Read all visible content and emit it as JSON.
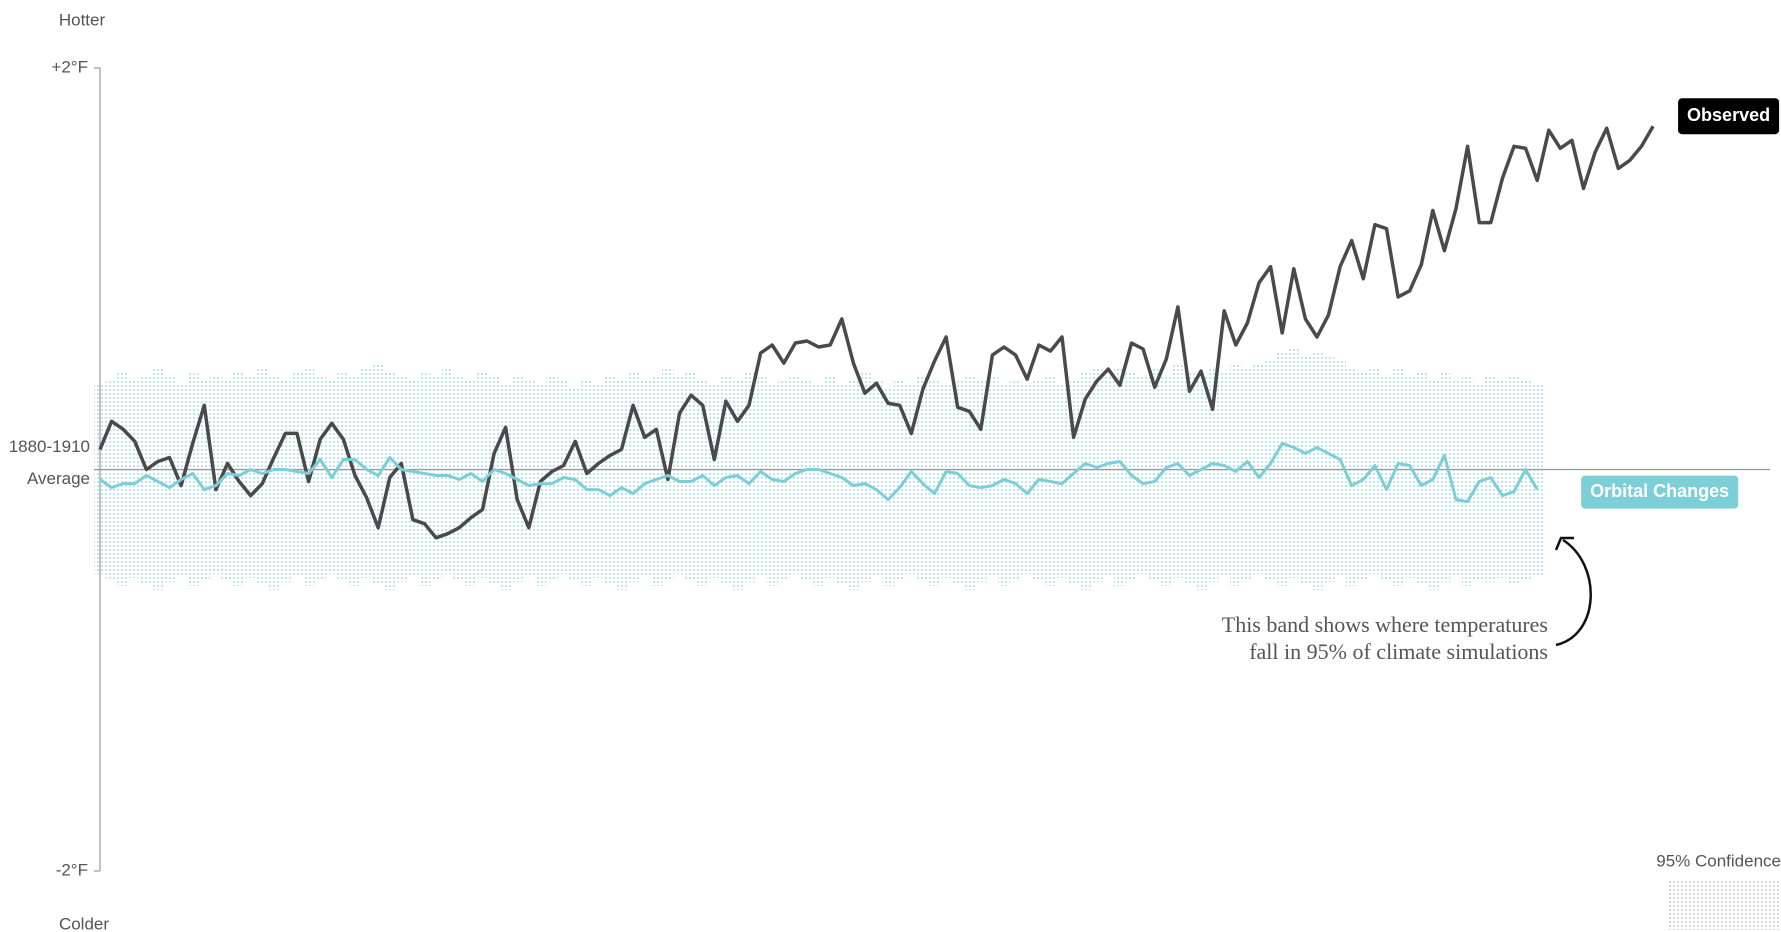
{
  "chart_data": {
    "type": "line",
    "axis_top_label": "Hotter",
    "axis_bottom_label": "Colder",
    "categories": [
      null,
      null,
      null,
      null,
      null,
      null,
      null,
      null,
      null,
      null,
      null,
      null,
      null,
      null,
      null,
      null,
      null,
      null,
      null,
      null,
      null,
      null,
      null,
      null,
      null,
      null,
      null,
      null,
      null,
      null,
      null,
      null,
      null,
      null,
      null,
      null,
      null,
      null,
      null,
      null,
      null,
      null,
      null,
      null,
      null,
      null,
      null,
      null,
      null,
      null,
      null,
      null,
      null,
      null,
      null,
      null,
      null,
      null,
      null,
      null,
      null,
      null,
      null,
      null,
      null,
      null,
      null,
      null,
      null,
      null,
      null,
      null,
      null,
      null,
      null,
      null,
      null,
      null,
      null,
      null,
      null,
      null,
      null,
      null,
      null,
      null,
      null,
      null,
      null,
      null,
      null,
      null,
      null,
      null,
      null,
      null,
      null,
      null,
      null,
      null,
      null,
      null,
      null,
      null,
      null,
      null,
      null,
      null,
      null,
      null,
      null,
      null,
      null,
      null,
      null,
      null,
      null,
      null,
      null,
      null,
      null,
      null,
      null,
      null,
      null,
      null,
      null,
      null,
      null,
      null,
      null,
      null,
      null,
      null,
      null
    ],
    "ylim": [
      -2,
      2
    ],
    "yticks": [
      {
        "value": 2,
        "label": "+2°F"
      },
      {
        "value": 0,
        "label": [
          "1880-1910",
          "Average"
        ]
      },
      {
        "value": -2,
        "label": "-2°F"
      }
    ],
    "series": [
      {
        "name": "Observed",
        "color": "#4a4a4a",
        "values": [
          0.1,
          0.24,
          0.2,
          0.14,
          0,
          0.04,
          0.06,
          -0.08,
          0.13,
          0.32,
          -0.1,
          0.03,
          -0.06,
          -0.13,
          -0.07,
          0.06,
          0.18,
          0.18,
          -0.06,
          0.15,
          0.23,
          0.15,
          -0.03,
          -0.14,
          -0.29,
          -0.04,
          0.03,
          -0.25,
          -0.27,
          -0.34,
          -0.32,
          -0.29,
          -0.24,
          -0.2,
          0.08,
          0.21,
          -0.15,
          -0.29,
          -0.06,
          -0.01,
          0.02,
          0.14,
          -0.02,
          0.03,
          0.07,
          0.1,
          0.32,
          0.16,
          0.2,
          -0.05,
          0.28,
          0.37,
          0.32,
          0.05,
          0.34,
          0.24,
          0.32,
          0.58,
          0.62,
          0.53,
          0.63,
          0.64,
          0.61,
          0.62,
          0.75,
          0.53,
          0.38,
          0.43,
          0.33,
          0.32,
          0.18,
          0.4,
          0.54,
          0.66,
          0.31,
          0.29,
          0.2,
          0.57,
          0.61,
          0.57,
          0.45,
          0.62,
          0.59,
          0.66,
          0.16,
          0.35,
          0.44,
          0.5,
          0.42,
          0.63,
          0.6,
          0.41,
          0.55,
          0.81,
          0.39,
          0.49,
          0.3,
          0.79,
          0.62,
          0.73,
          0.93,
          1.01,
          0.68,
          1,
          0.75,
          0.66,
          0.77,
          1.01,
          1.14,
          0.95,
          1.22,
          1.2,
          0.86,
          0.89,
          1.02,
          1.29,
          1.09,
          1.3,
          1.61,
          1.23,
          1.23,
          1.45,
          1.61,
          1.6,
          1.44,
          1.69,
          1.6,
          1.64,
          1.4,
          1.58,
          1.7,
          1.5,
          1.54,
          1.61,
          1.71
        ]
      },
      {
        "name": "Orbital Changes",
        "color": "#7ccfd6",
        "values": [
          -0.05,
          -0.09,
          -0.07,
          -0.07,
          -0.03,
          -0.06,
          -0.09,
          -0.05,
          -0.02,
          -0.1,
          -0.08,
          -0.02,
          -0.03,
          0,
          -0.02,
          0,
          0,
          -0.01,
          -0.02,
          0.05,
          -0.04,
          0.05,
          0.05,
          0,
          -0.03,
          0.06,
          0,
          -0.01,
          -0.02,
          -0.03,
          -0.03,
          -0.05,
          -0.02,
          -0.06,
          0,
          -0.02,
          -0.05,
          -0.08,
          -0.07,
          -0.07,
          -0.04,
          -0.05,
          -0.1,
          -0.1,
          -0.13,
          -0.09,
          -0.12,
          -0.07,
          -0.05,
          -0.03,
          -0.06,
          -0.06,
          -0.03,
          -0.08,
          -0.04,
          -0.03,
          -0.07,
          -0.01,
          -0.05,
          -0.06,
          -0.02,
          0,
          0,
          -0.02,
          -0.04,
          -0.08,
          -0.07,
          -0.1,
          -0.15,
          -0.09,
          -0.01,
          -0.07,
          -0.12,
          -0.01,
          -0.02,
          -0.08,
          -0.09,
          -0.08,
          -0.05,
          -0.07,
          -0.12,
          -0.05,
          -0.06,
          -0.07,
          -0.02,
          0.03,
          0.01,
          0.03,
          0.04,
          -0.03,
          -0.07,
          -0.06,
          0.01,
          0.03,
          -0.03,
          0,
          0.03,
          0.02,
          -0.01,
          0.04,
          -0.04,
          0.03,
          0.13,
          0.11,
          0.08,
          0.11,
          0.08,
          0.05,
          -0.08,
          -0.05,
          0.02,
          -0.1,
          0.03,
          0.02,
          -0.08,
          -0.05,
          0.07,
          -0.15,
          -0.16,
          -0.06,
          -0.04,
          -0.13,
          -0.11,
          0,
          -0.1,
          null,
          null,
          null,
          null,
          null,
          null,
          null,
          null,
          null,
          null
        ]
      }
    ],
    "band": {
      "name": "95% Confidence",
      "color": "#a8dde3",
      "upper": [
        0.42,
        0.45,
        0.48,
        0.44,
        0.47,
        0.5,
        0.46,
        0.43,
        0.48,
        0.45,
        0.47,
        0.44,
        0.49,
        0.46,
        0.5,
        0.47,
        0.44,
        0.48,
        0.51,
        0.47,
        0.45,
        0.49,
        0.46,
        0.5,
        0.53,
        0.49,
        0.47,
        0.44,
        0.48,
        0.46,
        0.5,
        0.47,
        0.45,
        0.49,
        0.46,
        0.43,
        0.47,
        0.45,
        0.42,
        0.46,
        0.44,
        0.41,
        0.45,
        0.43,
        0.46,
        0.44,
        0.48,
        0.45,
        0.47,
        0.5,
        0.46,
        0.49,
        0.45,
        0.43,
        0.47,
        0.44,
        0.48,
        0.46,
        0.43,
        0.45,
        0.47,
        0.44,
        0.42,
        0.46,
        0.43,
        0.45,
        0.48,
        0.44,
        0.41,
        0.45,
        0.43,
        0.46,
        0.44,
        0.42,
        0.45,
        0.47,
        0.44,
        0.46,
        0.43,
        0.45,
        0.42,
        0.44,
        0.46,
        0.43,
        0.45,
        0.48,
        0.5,
        0.47,
        0.51,
        0.49,
        0.46,
        0.5,
        0.47,
        0.52,
        0.49,
        0.46,
        0.5,
        0.48,
        0.53,
        0.5,
        0.52,
        0.55,
        0.58,
        0.6,
        0.57,
        0.59,
        0.56,
        0.54,
        0.5,
        0.48,
        0.51,
        0.47,
        0.5,
        0.46,
        0.49,
        0.45,
        0.48,
        0.44,
        0.47,
        0.43,
        0.46,
        0.44,
        0.47,
        0.45,
        0.43,
        null,
        null,
        null,
        null,
        null,
        null,
        null,
        null,
        null,
        null
      ],
      "lower": [
        -0.52,
        -0.55,
        -0.58,
        -0.54,
        -0.57,
        -0.6,
        -0.56,
        -0.53,
        -0.58,
        -0.55,
        -0.52,
        -0.55,
        -0.58,
        -0.54,
        -0.57,
        -0.6,
        -0.56,
        -0.53,
        -0.58,
        -0.55,
        -0.52,
        -0.55,
        -0.58,
        -0.54,
        -0.57,
        -0.6,
        -0.56,
        -0.53,
        -0.58,
        -0.55,
        -0.52,
        -0.55,
        -0.58,
        -0.54,
        -0.57,
        -0.6,
        -0.56,
        -0.53,
        -0.58,
        -0.55,
        -0.52,
        -0.55,
        -0.58,
        -0.54,
        -0.57,
        -0.6,
        -0.56,
        -0.53,
        -0.58,
        -0.55,
        -0.52,
        -0.55,
        -0.58,
        -0.54,
        -0.57,
        -0.6,
        -0.56,
        -0.53,
        -0.58,
        -0.55,
        -0.52,
        -0.55,
        -0.58,
        -0.54,
        -0.57,
        -0.6,
        -0.56,
        -0.53,
        -0.58,
        -0.55,
        -0.52,
        -0.55,
        -0.58,
        -0.54,
        -0.57,
        -0.6,
        -0.56,
        -0.53,
        -0.58,
        -0.55,
        -0.52,
        -0.55,
        -0.58,
        -0.54,
        -0.57,
        -0.6,
        -0.56,
        -0.53,
        -0.58,
        -0.55,
        -0.52,
        -0.55,
        -0.58,
        -0.54,
        -0.57,
        -0.6,
        -0.56,
        -0.53,
        -0.58,
        -0.55,
        -0.52,
        -0.55,
        -0.58,
        -0.54,
        -0.57,
        -0.6,
        -0.56,
        -0.53,
        -0.58,
        -0.55,
        -0.52,
        -0.55,
        -0.58,
        -0.54,
        -0.57,
        -0.6,
        -0.56,
        -0.53,
        -0.58,
        -0.55,
        -0.56,
        -0.54,
        -0.57,
        -0.55,
        -0.53,
        null,
        null,
        null,
        null,
        null,
        null,
        null,
        null,
        null,
        null
      ]
    },
    "annotation": [
      "This band shows where temperatures",
      "fall in 95% of climate simulations"
    ]
  }
}
